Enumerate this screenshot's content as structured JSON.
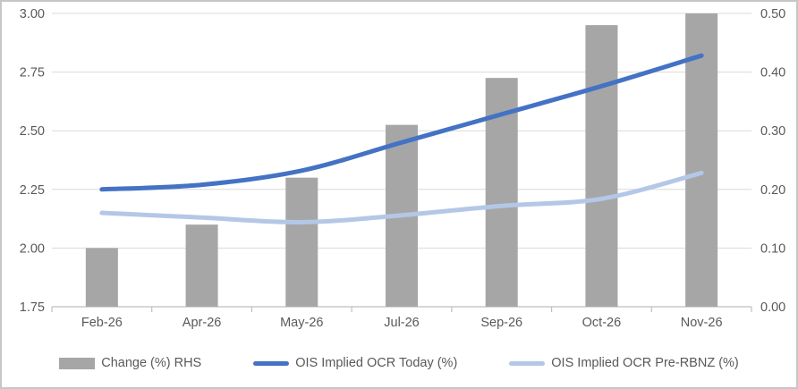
{
  "chart_data": {
    "type": "bar",
    "comment_type": "combo bar + two smoothed lines, dual axes",
    "categories": [
      "Feb-26",
      "Apr-26",
      "May-26",
      "Jul-26",
      "Sep-26",
      "Oct-26",
      "Nov-26"
    ],
    "series": [
      {
        "name": "Change (%) RHS",
        "kind": "bar",
        "axis": "right",
        "color": "#a6a6a6",
        "values": [
          0.1,
          0.14,
          0.22,
          0.31,
          0.39,
          0.48,
          0.5
        ]
      },
      {
        "name": "OIS Implied OCR Today (%)",
        "kind": "line",
        "axis": "left",
        "color": "#4472c4",
        "values": [
          2.25,
          2.27,
          2.33,
          2.45,
          2.57,
          2.69,
          2.82
        ]
      },
      {
        "name": "OIS Implied OCR Pre-RBNZ (%)",
        "kind": "line",
        "axis": "left",
        "color": "#b4c7e7",
        "values": [
          2.15,
          2.13,
          2.11,
          2.14,
          2.18,
          2.21,
          2.32
        ]
      }
    ],
    "left_axis": {
      "min": 1.75,
      "max": 3.0,
      "step": 0.25,
      "ticks": [
        "1.75",
        "2.00",
        "2.25",
        "2.50",
        "2.75",
        "3.00"
      ]
    },
    "right_axis": {
      "min": 0.0,
      "max": 0.5,
      "step": 0.1,
      "ticks": [
        "0.00",
        "0.10",
        "0.20",
        "0.30",
        "0.40",
        "0.50"
      ]
    },
    "grid": true,
    "legend_position": "bottom",
    "title": "",
    "xlabel": "",
    "ylabel": ""
  },
  "colors": {
    "bar": "#a6a6a6",
    "line_today": "#4472c4",
    "line_pre_rbnz": "#b4c7e7",
    "gridline": "#d9d9d9",
    "axis_line": "#bfbfbf",
    "axis_text": "#595959",
    "border": "#c6c6c6",
    "background": "#ffffff"
  }
}
